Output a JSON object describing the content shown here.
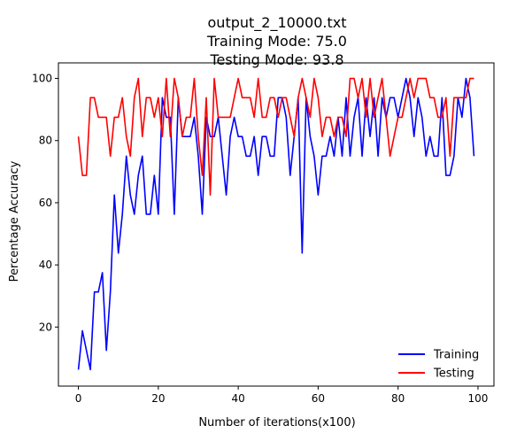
{
  "chart_data": {
    "type": "line",
    "title_lines": [
      "output_2_10000.txt",
      "Training Mode: 75.0",
      "Testing Mode: 93.8"
    ],
    "xlabel": "Number of iterations(x100)",
    "ylabel": "Percentage Accuracy",
    "xlim": [
      -5,
      104
    ],
    "ylim": [
      1,
      105
    ],
    "xticks": [
      0,
      20,
      40,
      60,
      80,
      100
    ],
    "yticks": [
      20,
      40,
      60,
      80,
      100
    ],
    "grid": false,
    "legend_position": "lower-right",
    "x": [
      0,
      1,
      2,
      3,
      4,
      5,
      6,
      7,
      8,
      9,
      10,
      11,
      12,
      13,
      14,
      15,
      16,
      17,
      18,
      19,
      20,
      21,
      22,
      23,
      24,
      25,
      26,
      27,
      28,
      29,
      30,
      31,
      32,
      33,
      34,
      35,
      36,
      37,
      38,
      39,
      40,
      41,
      42,
      43,
      44,
      45,
      46,
      47,
      48,
      49,
      50,
      51,
      52,
      53,
      54,
      55,
      56,
      57,
      58,
      59,
      60,
      61,
      62,
      63,
      64,
      65,
      66,
      67,
      68,
      69,
      70,
      71,
      72,
      73,
      74,
      75,
      76,
      77,
      78,
      79,
      80,
      81,
      82,
      83,
      84,
      85,
      86,
      87,
      88,
      89,
      90,
      91,
      92,
      93,
      94,
      95,
      96,
      97,
      98,
      99
    ],
    "series": [
      {
        "name": "Training",
        "color": "#0000ff",
        "values": [
          6.3,
          18.8,
          12.5,
          6.3,
          31.3,
          31.3,
          37.5,
          12.5,
          31.3,
          62.5,
          43.8,
          56.3,
          75.0,
          62.5,
          56.3,
          68.8,
          75.0,
          56.3,
          56.3,
          68.8,
          56.3,
          93.8,
          87.5,
          87.5,
          56.3,
          93.8,
          81.3,
          81.3,
          81.3,
          87.5,
          75.0,
          56.3,
          87.5,
          81.3,
          81.3,
          87.5,
          75.0,
          62.5,
          81.3,
          87.5,
          81.3,
          81.3,
          75.0,
          75.0,
          81.3,
          68.8,
          81.3,
          81.3,
          75.0,
          75.0,
          93.8,
          93.8,
          87.5,
          68.8,
          81.3,
          93.8,
          43.8,
          93.8,
          81.3,
          75.0,
          62.5,
          75.0,
          75.0,
          81.3,
          75.0,
          87.5,
          75.0,
          93.8,
          75.0,
          87.5,
          93.8,
          75.0,
          93.8,
          81.3,
          93.8,
          75.0,
          93.8,
          87.5,
          93.8,
          93.8,
          87.5,
          93.8,
          100.0,
          93.8,
          81.3,
          93.8,
          87.5,
          75.0,
          81.3,
          75.0,
          75.0,
          93.8,
          68.8,
          68.8,
          75.0,
          93.8,
          87.5,
          100.0,
          93.8,
          75.0
        ]
      },
      {
        "name": "Testing",
        "color": "#ff0000",
        "values": [
          81.3,
          68.8,
          68.8,
          93.8,
          93.8,
          87.5,
          87.5,
          87.5,
          75.0,
          87.5,
          87.5,
          93.8,
          81.3,
          75.0,
          93.8,
          100.0,
          81.3,
          93.8,
          93.8,
          87.5,
          93.8,
          81.3,
          100.0,
          81.3,
          100.0,
          93.8,
          81.3,
          87.5,
          87.5,
          100.0,
          81.3,
          68.8,
          93.8,
          62.5,
          100.0,
          87.5,
          87.5,
          87.5,
          87.5,
          93.8,
          100.0,
          93.8,
          93.8,
          93.8,
          87.5,
          100.0,
          87.5,
          87.5,
          93.8,
          93.8,
          87.5,
          93.8,
          93.8,
          87.5,
          81.3,
          93.8,
          100.0,
          93.8,
          87.5,
          100.0,
          93.8,
          81.3,
          87.5,
          87.5,
          81.3,
          87.5,
          87.5,
          81.3,
          100.0,
          100.0,
          93.8,
          100.0,
          87.5,
          100.0,
          87.5,
          93.8,
          100.0,
          87.5,
          75.0,
          81.3,
          87.5,
          87.5,
          93.8,
          100.0,
          93.8,
          100.0,
          100.0,
          100.0,
          93.8,
          93.8,
          87.5,
          87.5,
          93.8,
          75.0,
          93.8,
          93.8,
          93.8,
          93.8,
          100.0,
          100.0
        ]
      }
    ]
  }
}
